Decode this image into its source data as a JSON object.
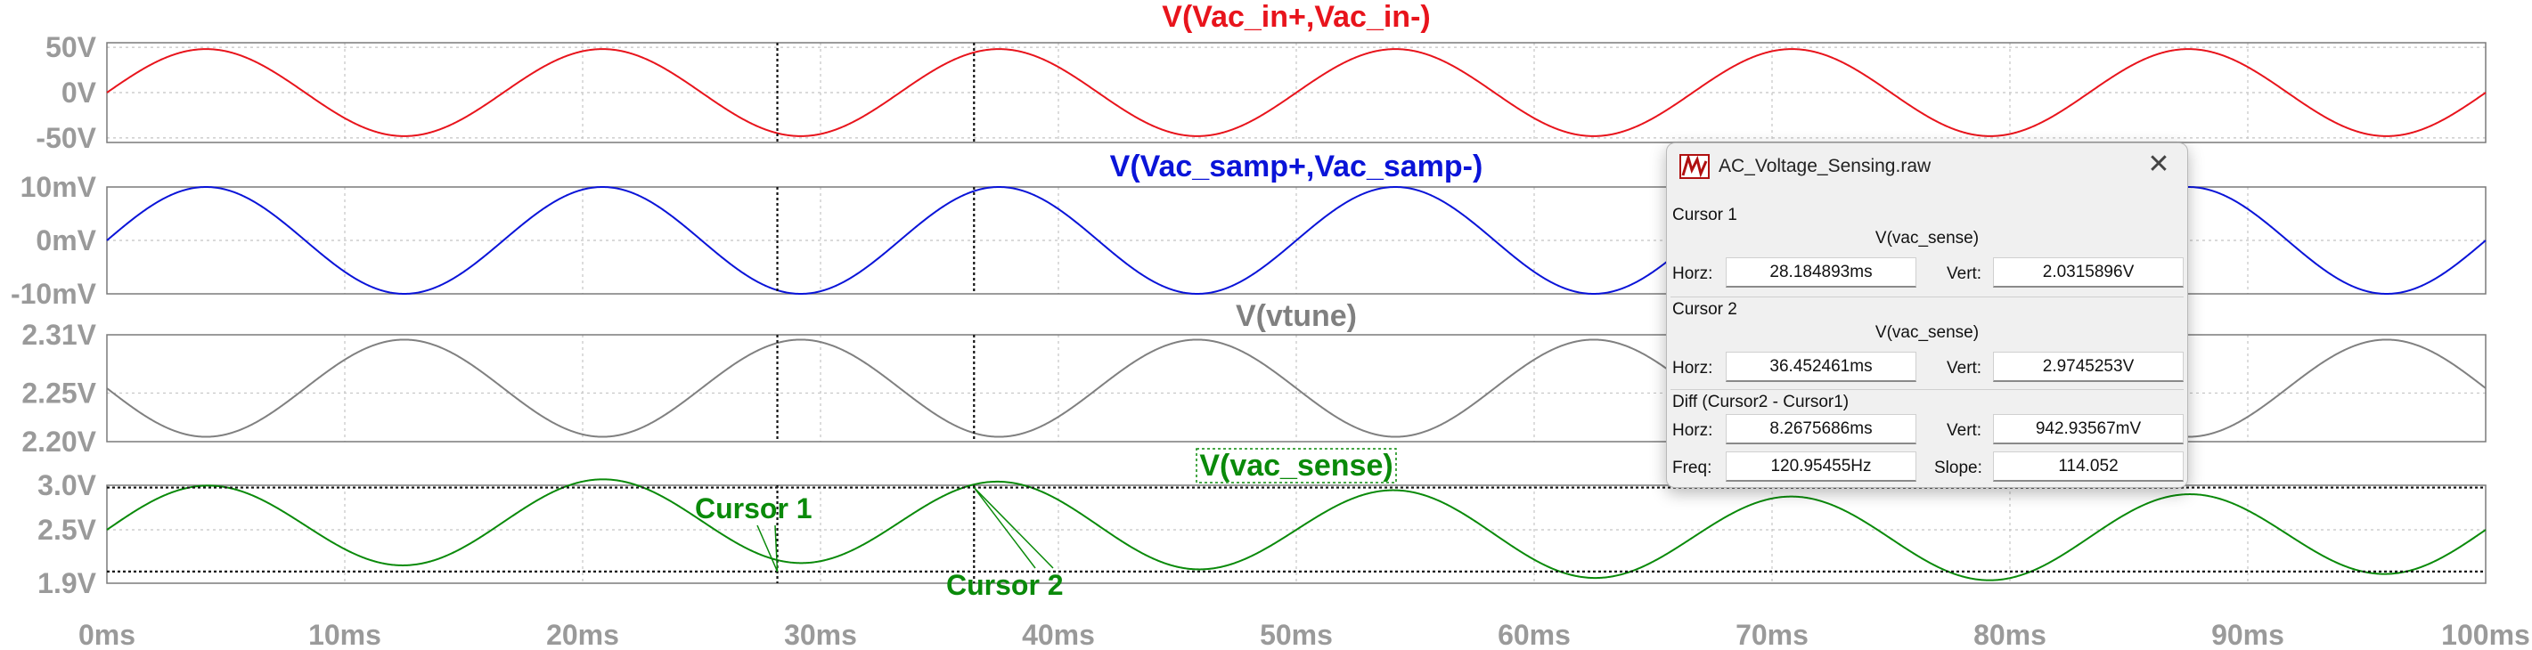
{
  "chart_data": {
    "type": "line",
    "x_axis": {
      "min_ms": 0,
      "max_ms": 100,
      "step_ms": 10,
      "tick_labels": [
        "0ms",
        "10ms",
        "20ms",
        "30ms",
        "40ms",
        "50ms",
        "60ms",
        "70ms",
        "80ms",
        "90ms",
        "100ms"
      ]
    },
    "grid": true,
    "panes": [
      {
        "title": "V(Vac_in+,Vac_in-)",
        "color": "#e8141c",
        "ylim": [
          -55,
          55
        ],
        "tick_values": [
          50,
          0,
          -50
        ],
        "tick_labels": [
          "50V",
          "0V",
          "-50V"
        ],
        "wave": {
          "offset": 0,
          "amplitude": 48,
          "frequency_hz": 60,
          "phase_deg": 0
        }
      },
      {
        "title": "V(Vac_samp+,Vac_samp-)",
        "color": "#0a14d8",
        "ylim": [
          -10,
          10
        ],
        "tick_values": [
          10,
          0,
          -10
        ],
        "tick_labels": [
          "10mV",
          "0mV",
          "-10mV"
        ],
        "wave": {
          "offset": 0,
          "amplitude": 10,
          "frequency_hz": 60,
          "phase_deg": 0
        }
      },
      {
        "title": "V(vtune)",
        "color": "#808080",
        "ylim": [
          2.2,
          2.31
        ],
        "tick_values": [
          2.31,
          2.25,
          2.2
        ],
        "tick_labels": [
          "2.31V",
          "2.25V",
          "2.20V"
        ],
        "wave": {
          "offset": 2.255,
          "amplitude": 0.05,
          "frequency_hz": 60,
          "phase_deg": 180
        }
      },
      {
        "title": "V(vac_sense)",
        "color": "#0a8a0a",
        "ylim": [
          1.9,
          3.0
        ],
        "tick_values": [
          3.0,
          2.5,
          1.9
        ],
        "tick_labels": [
          "3.0V",
          "2.5V",
          "1.9V"
        ],
        "wave": {
          "offset": 2.5,
          "amplitude": 0.47,
          "frequency_hz": 60,
          "phase_deg": 0,
          "slow_amplitude": 0.1,
          "slow_frequency_hz": 10
        }
      }
    ],
    "cursors": [
      {
        "label": "Cursor 1",
        "time_ms": 28.184893,
        "value_v": 2.0315896
      },
      {
        "label": "Cursor 2",
        "time_ms": 36.452461,
        "value_v": 2.9745253
      }
    ]
  },
  "cursor_window": {
    "title": "AC_Voltage_Sensing.raw",
    "cursor1": {
      "heading": "Cursor 1",
      "signal": "V(vac_sense)",
      "horz_label": "Horz:",
      "horz": "28.184893ms",
      "vert_label": "Vert:",
      "vert": "2.0315896V"
    },
    "cursor2": {
      "heading": "Cursor 2",
      "signal": "V(vac_sense)",
      "horz_label": "Horz:",
      "horz": "36.452461ms",
      "vert_label": "Vert:",
      "vert": "2.9745253V"
    },
    "diff": {
      "heading": "Diff (Cursor2 - Cursor1)",
      "horz_label": "Horz:",
      "horz": "8.2675686ms",
      "vert_label": "Vert:",
      "vert": "942.93567mV",
      "freq_label": "Freq:",
      "freq": "120.95455Hz",
      "slope_label": "Slope:",
      "slope": "114.052"
    }
  }
}
